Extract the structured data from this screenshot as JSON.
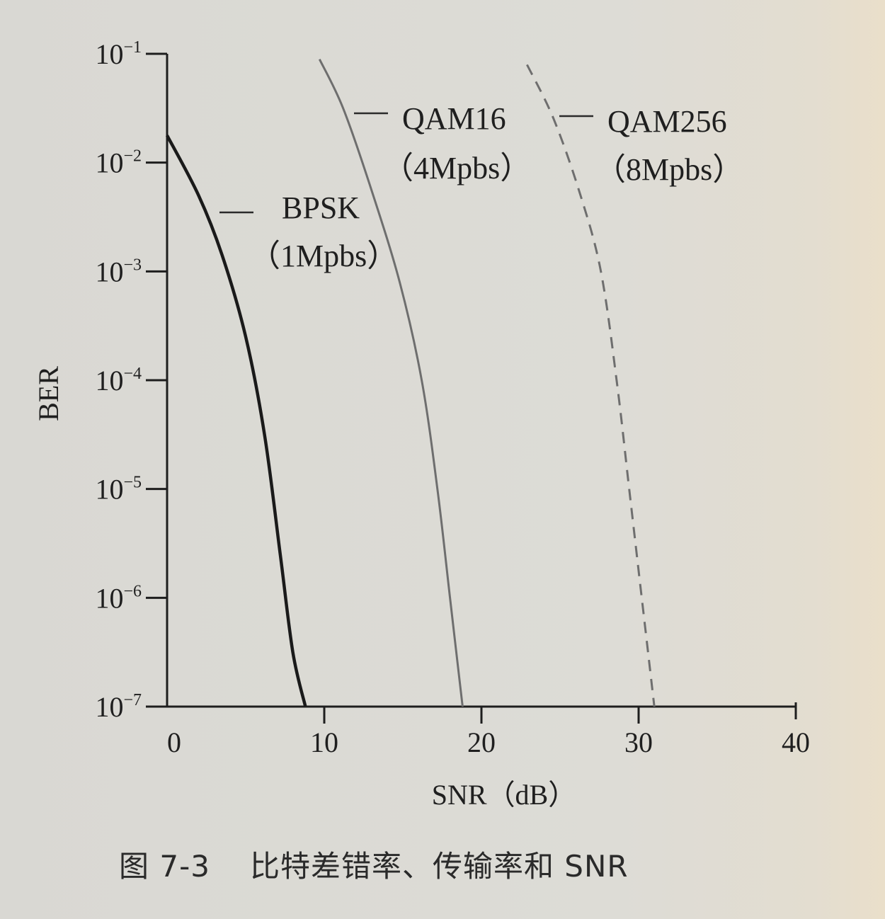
{
  "chart_data": {
    "type": "line",
    "xlabel": "SNR（dB）",
    "ylabel": "BER",
    "xlim": [
      0,
      40
    ],
    "ylim_log10": [
      -7,
      -1
    ],
    "x_ticks": [
      {
        "value": 0,
        "label": "0"
      },
      {
        "value": 10,
        "label": "10"
      },
      {
        "value": 20,
        "label": "20"
      },
      {
        "value": 30,
        "label": "30"
      },
      {
        "value": 40,
        "label": "40"
      }
    ],
    "y_ticks": [
      {
        "exp": -1,
        "base": "10",
        "sup": "−1"
      },
      {
        "exp": -2,
        "base": "10",
        "sup": "−2"
      },
      {
        "exp": -3,
        "base": "10",
        "sup": "−3"
      },
      {
        "exp": -4,
        "base": "10",
        "sup": "−4"
      },
      {
        "exp": -5,
        "base": "10",
        "sup": "−5"
      },
      {
        "exp": -6,
        "base": "10",
        "sup": "−6"
      },
      {
        "exp": -7,
        "base": "10",
        "sup": "−7"
      }
    ],
    "series": [
      {
        "name": "BPSK",
        "rate": "（1Mpbs）",
        "style": "solid-bold",
        "color": "#1a1a1a",
        "points": [
          [
            0,
            -1.75
          ],
          [
            2,
            -2.3
          ],
          [
            3.5,
            -2.85
          ],
          [
            5,
            -3.6
          ],
          [
            6.2,
            -4.5
          ],
          [
            7.2,
            -5.6
          ],
          [
            8,
            -6.5
          ],
          [
            8.8,
            -7.0
          ]
        ]
      },
      {
        "name": "QAM16",
        "rate": "（4Mpbs）",
        "style": "solid-thin",
        "color": "#6e6e6e",
        "points": [
          [
            9.7,
            -1.05
          ],
          [
            11.2,
            -1.5
          ],
          [
            13,
            -2.25
          ],
          [
            14.8,
            -3.1
          ],
          [
            16.2,
            -4.0
          ],
          [
            17.2,
            -5.0
          ],
          [
            18,
            -6.0
          ],
          [
            18.8,
            -7.0
          ]
        ]
      },
      {
        "name": "QAM256",
        "rate": "（8Mpbs）",
        "style": "dashed",
        "color": "#6e6e6e",
        "points": [
          [
            22.9,
            -1.1
          ],
          [
            24.6,
            -1.6
          ],
          [
            26.3,
            -2.3
          ],
          [
            27.6,
            -3.0
          ],
          [
            28.6,
            -4.0
          ],
          [
            29.4,
            -5.0
          ],
          [
            30.2,
            -6.0
          ],
          [
            31.0,
            -7.0
          ]
        ]
      }
    ]
  },
  "caption": {
    "figure_number": "图 7-3",
    "title": "比特差错率、传输率和 SNR"
  }
}
